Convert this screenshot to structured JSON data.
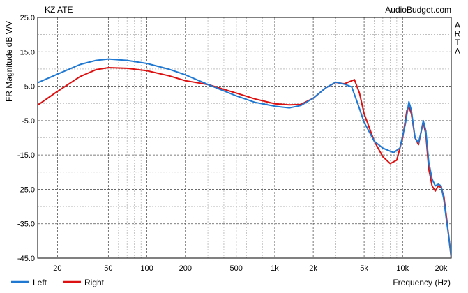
{
  "chart_data": {
    "type": "line",
    "title": "KZ ATE",
    "watermark": "AudioBudget.com",
    "side_label": "ARTA",
    "xlabel": "Frequency (Hz)",
    "ylabel": "FR Magnitude dB V/V",
    "x_scale": "log",
    "xlim": [
      14,
      24000
    ],
    "ylim": [
      -45,
      25
    ],
    "y_ticks": [
      "25.0",
      "15.0",
      "5.0",
      "-5.0",
      "-15.0",
      "-25.0",
      "-35.0",
      "-45.0"
    ],
    "y_tick_values": [
      25,
      15,
      5,
      -5,
      -15,
      -25,
      -35,
      -45
    ],
    "x_ticks": [
      "20",
      "50",
      "100",
      "200",
      "500",
      "1k",
      "2k",
      "5k",
      "10k",
      "20k"
    ],
    "x_tick_values": [
      20,
      50,
      100,
      200,
      500,
      1000,
      2000,
      5000,
      10000,
      20000
    ],
    "grid": true,
    "legend_position": "bottom-left",
    "series": [
      {
        "name": "Left",
        "color": "#1f78d2",
        "points": [
          [
            14,
            6
          ],
          [
            20,
            8.5
          ],
          [
            30,
            11.3
          ],
          [
            40,
            12.5
          ],
          [
            50,
            12.9
          ],
          [
            70,
            12.5
          ],
          [
            100,
            11.6
          ],
          [
            150,
            9.9
          ],
          [
            200,
            8.3
          ],
          [
            300,
            5.5
          ],
          [
            500,
            2.2
          ],
          [
            700,
            0.3
          ],
          [
            1000,
            -0.8
          ],
          [
            1300,
            -1.3
          ],
          [
            1600,
            -0.6
          ],
          [
            2000,
            1.5
          ],
          [
            2500,
            4.5
          ],
          [
            3000,
            6.2
          ],
          [
            3500,
            5.6
          ],
          [
            4000,
            4.8
          ],
          [
            4500,
            -0.5
          ],
          [
            5000,
            -5.5
          ],
          [
            6000,
            -11
          ],
          [
            7000,
            -13
          ],
          [
            8500,
            -14.3
          ],
          [
            9500,
            -13
          ],
          [
            10500,
            -6
          ],
          [
            11200,
            0.5
          ],
          [
            11700,
            -2
          ],
          [
            12500,
            -10
          ],
          [
            13300,
            -11.5
          ],
          [
            14000,
            -8
          ],
          [
            14500,
            -5
          ],
          [
            15200,
            -8
          ],
          [
            16000,
            -17
          ],
          [
            17000,
            -22
          ],
          [
            18000,
            -24
          ],
          [
            19000,
            -23.5
          ],
          [
            20000,
            -24
          ],
          [
            21000,
            -28
          ],
          [
            22000,
            -34
          ],
          [
            23000,
            -39
          ],
          [
            24000,
            -45
          ]
        ]
      },
      {
        "name": "Right",
        "color": "#dd1111",
        "points": [
          [
            14,
            -0.5
          ],
          [
            20,
            3.5
          ],
          [
            30,
            7.8
          ],
          [
            40,
            9.8
          ],
          [
            50,
            10.4
          ],
          [
            70,
            10.2
          ],
          [
            100,
            9.5
          ],
          [
            150,
            8
          ],
          [
            200,
            6.6
          ],
          [
            300,
            5.5
          ],
          [
            500,
            3
          ],
          [
            700,
            1.3
          ],
          [
            1000,
            -0.1
          ],
          [
            1300,
            -0.4
          ],
          [
            1600,
            -0.3
          ],
          [
            2000,
            1.5
          ],
          [
            2500,
            4.5
          ],
          [
            3000,
            6.1
          ],
          [
            3500,
            5.7
          ],
          [
            4200,
            6.9
          ],
          [
            4600,
            3
          ],
          [
            5000,
            -3
          ],
          [
            6000,
            -11
          ],
          [
            7000,
            -15.5
          ],
          [
            8000,
            -17.5
          ],
          [
            9000,
            -16.5
          ],
          [
            10000,
            -10
          ],
          [
            10800,
            -2
          ],
          [
            11200,
            -1
          ],
          [
            11700,
            -3
          ],
          [
            12500,
            -10
          ],
          [
            13300,
            -12
          ],
          [
            14000,
            -8
          ],
          [
            14500,
            -5.5
          ],
          [
            15200,
            -9
          ],
          [
            16000,
            -19
          ],
          [
            17000,
            -24
          ],
          [
            18000,
            -25.5
          ],
          [
            19000,
            -24
          ],
          [
            20000,
            -24.5
          ],
          [
            21000,
            -27
          ],
          [
            22000,
            -33
          ],
          [
            23000,
            -39
          ],
          [
            24000,
            -45
          ]
        ]
      }
    ]
  }
}
